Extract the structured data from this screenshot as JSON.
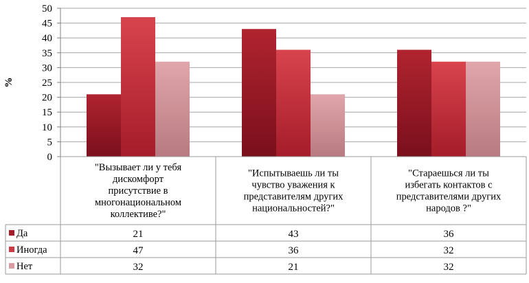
{
  "chart_data": {
    "type": "bar",
    "ylabel": "%",
    "ylim": [
      0,
      50
    ],
    "yticks": [
      0,
      5,
      10,
      15,
      20,
      25,
      30,
      35,
      40,
      45,
      50
    ],
    "grid": true,
    "categories": [
      [
        "\"Вызывает ли у тебя",
        "дискомфорт",
        "присутствие  в",
        "многонациональном",
        "коллективе?\""
      ],
      [
        "\"Испытываешь ли ты",
        "чувство уважения к",
        "представителям других",
        "национальностей?\""
      ],
      [
        "\"Стараешься ли ты",
        "избегать контактов с",
        "представителями других",
        "народов ?\""
      ]
    ],
    "series": [
      {
        "name": "Да",
        "values": [
          21,
          43,
          36
        ],
        "color": "#a51c2a"
      },
      {
        "name": "Иногда",
        "values": [
          47,
          36,
          32
        ],
        "color": "#cc3a45"
      },
      {
        "name": "Нет",
        "values": [
          32,
          21,
          32
        ],
        "color": "#d99aa0"
      }
    ],
    "legend": "data-table"
  }
}
